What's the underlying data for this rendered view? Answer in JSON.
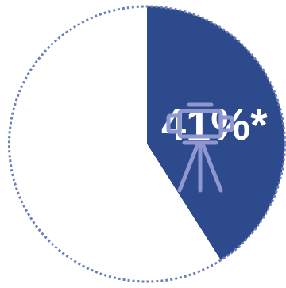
{
  "chart_data": {
    "type": "pie",
    "values": [
      41,
      59
    ],
    "value_labels": [
      "41%*",
      null
    ],
    "colors": [
      "#2c4a8c",
      "#ffffff"
    ],
    "data_labels": true
  }
}
